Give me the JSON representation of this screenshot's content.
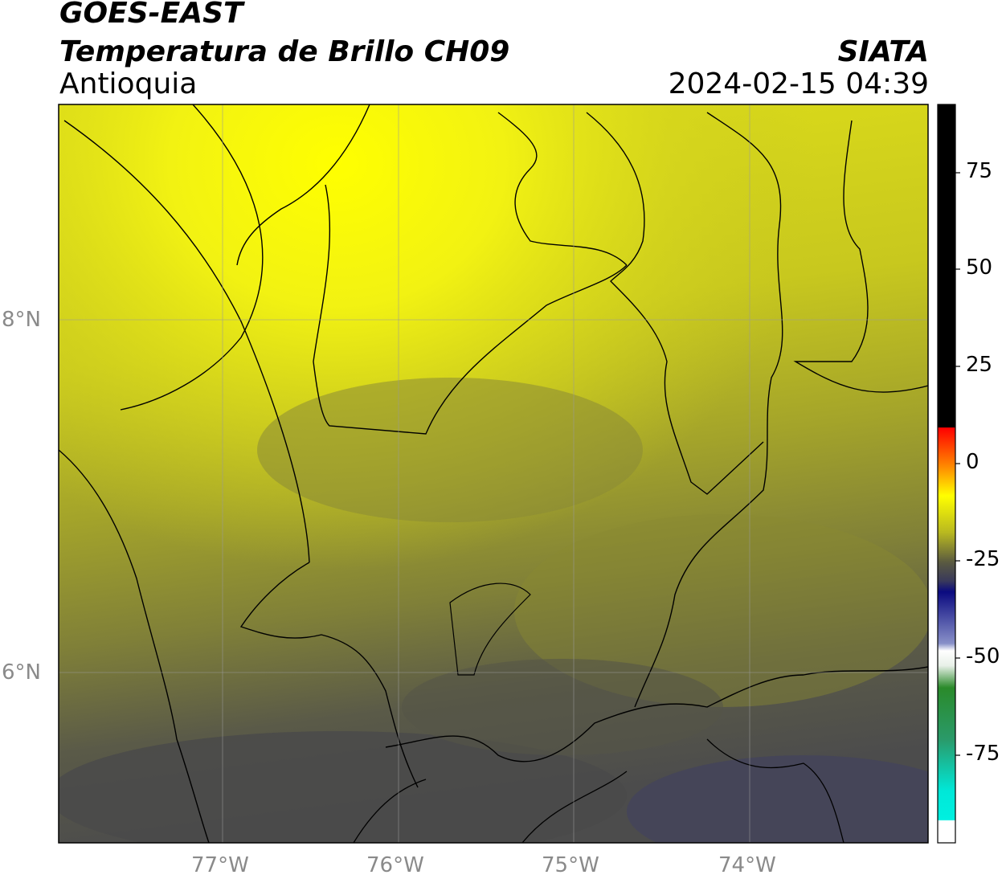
{
  "header": {
    "satellite": "GOES-EAST",
    "product": "Temperatura de Brillo CH09",
    "region": "Antioquia",
    "organization": "SIATA",
    "timestamp": "2024-02-15 04:39"
  },
  "map": {
    "lat_ticks": [
      "8°N",
      "6°N"
    ],
    "lon_ticks": [
      "77°W",
      "76°W",
      "75°W",
      "74°W"
    ],
    "gridlines": true
  },
  "colorbar": {
    "ticks": [
      "75",
      "50",
      "25",
      "0",
      "-25",
      "-50",
      "-75"
    ],
    "colors": {
      "warm": "#000000",
      "red": "#ff0000",
      "yellow": "#ffff00",
      "olive": "#9a9a2a",
      "gray": "#4a4a4a",
      "navy": "#0a0a80",
      "white": "#ffffff",
      "green": "#2a8a2a",
      "cyan": "#00e0d8"
    }
  }
}
